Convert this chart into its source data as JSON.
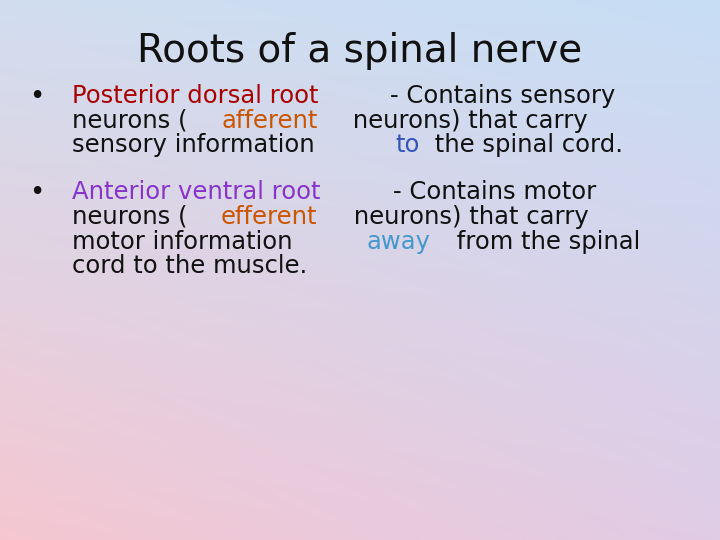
{
  "title": "Roots of a spinal nerve",
  "title_fontsize": 28,
  "title_color": "#111111",
  "body_fontsize": 17.5,
  "bg_topleft": [
    0.82,
    0.87,
    0.94
  ],
  "bg_topright": [
    0.78,
    0.87,
    0.96
  ],
  "bg_bottomleft": [
    0.96,
    0.78,
    0.82
  ],
  "bg_bottomright": [
    0.88,
    0.8,
    0.9
  ],
  "bullet1_lines": [
    [
      {
        "text": "Posterior dorsal root",
        "color": "#aa0000"
      },
      {
        "text": "- Contains sensory",
        "color": "#111111"
      }
    ],
    [
      {
        "text": "neurons (",
        "color": "#111111"
      },
      {
        "text": "afferent",
        "color": "#cc5500"
      },
      {
        "text": " neurons) that carry",
        "color": "#111111"
      }
    ],
    [
      {
        "text": "sensory information ",
        "color": "#111111"
      },
      {
        "text": "to",
        "color": "#3355bb"
      },
      {
        "text": " the spinal cord.",
        "color": "#111111"
      }
    ]
  ],
  "bullet2_lines": [
    [
      {
        "text": "Anterior ventral root",
        "color": "#8833cc"
      },
      {
        "text": "- Contains motor",
        "color": "#111111"
      }
    ],
    [
      {
        "text": "neurons (",
        "color": "#111111"
      },
      {
        "text": "efferent",
        "color": "#cc5500"
      },
      {
        "text": " neurons) that carry",
        "color": "#111111"
      }
    ],
    [
      {
        "text": "motor information ",
        "color": "#111111"
      },
      {
        "text": "away",
        "color": "#4499cc"
      },
      {
        "text": " from the spinal",
        "color": "#111111"
      }
    ],
    [
      {
        "text": "cord to the muscle.",
        "color": "#111111"
      }
    ]
  ]
}
